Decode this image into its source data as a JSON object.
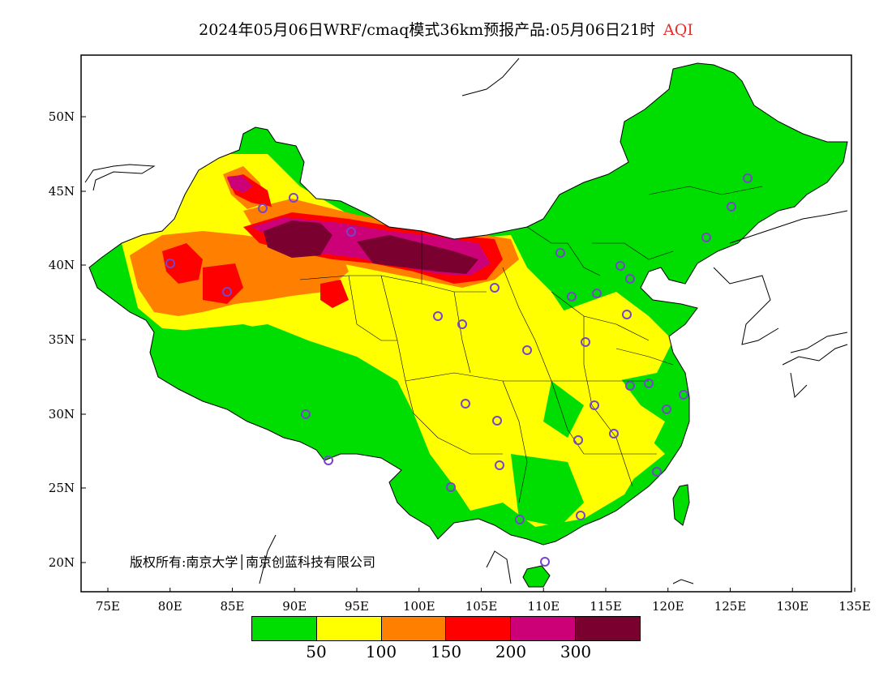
{
  "title": {
    "main": "2024年05月06日WRF/cmaq模式36km预报产品:05月06日21时",
    "variable": "AQI"
  },
  "axes": {
    "lon_labels": [
      "75E",
      "80E",
      "85E",
      "90E",
      "95E",
      "100E",
      "105E",
      "110E",
      "115E",
      "120E",
      "125E",
      "130E",
      "135E"
    ],
    "lat_labels": [
      "20N",
      "25N",
      "30N",
      "35N",
      "40N",
      "45N",
      "50N"
    ]
  },
  "copyright": "版权所有:南京大学│南京创蓝科技有限公司",
  "legend": {
    "colors": [
      "#00dd00",
      "#ffff00",
      "#ff8000",
      "#ff0000",
      "#cc0077",
      "#7a0030"
    ],
    "labels": [
      "50",
      "100",
      "150",
      "200",
      "300"
    ]
  },
  "colors": {
    "land_outside": "#ffffff",
    "boundary": "#000000",
    "station_ring": "#7744cc"
  }
}
